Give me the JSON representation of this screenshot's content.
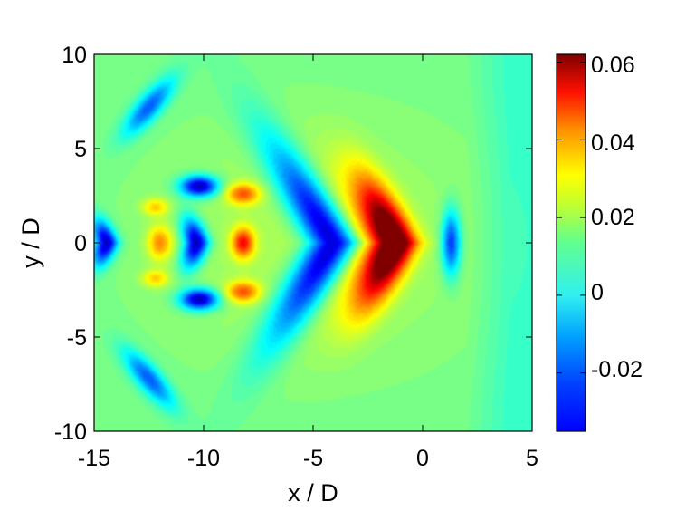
{
  "chart_data": {
    "type": "heatmap",
    "title": "",
    "xlabel": "x / D",
    "ylabel": "y / D",
    "xlim": [
      -15,
      5
    ],
    "ylim": [
      -10,
      10
    ],
    "xticks": [
      -15,
      -10,
      -5,
      0,
      5
    ],
    "xtick_labels": [
      "-15",
      "-10",
      "-5",
      "0",
      "5"
    ],
    "yticks": [
      -10,
      -5,
      0,
      5,
      10
    ],
    "ytick_labels": [
      "-10",
      "-5",
      "0",
      "5",
      "10"
    ],
    "colorbar": {
      "colormap": "jet",
      "range": [
        -0.035,
        0.062
      ],
      "ticks": [
        -0.02,
        0,
        0.02,
        0.04,
        0.06
      ],
      "tick_labels": [
        "-0.02",
        "0",
        "0.02",
        "0.04",
        "0.06"
      ]
    },
    "grid": false,
    "features": [
      {
        "x": -1.2,
        "y": 0,
        "value": 0.062,
        "description": "main positive lobe"
      },
      {
        "x": -4.0,
        "y": 0,
        "value": -0.035,
        "description": "main negative chevron"
      },
      {
        "x": 1.3,
        "y": 0,
        "value": -0.02,
        "description": "downstream negative lobe"
      },
      {
        "x": -8.2,
        "y": 0,
        "value": 0.045,
        "description": "positive center lobe"
      },
      {
        "x": -8.2,
        "y": 2.6,
        "value": 0.038,
        "description": "upper positive lobe"
      },
      {
        "x": -8.2,
        "y": -2.6,
        "value": 0.038,
        "description": "lower positive lobe"
      },
      {
        "x": -10.3,
        "y": 0,
        "value": -0.033,
        "description": "negative center lobe"
      },
      {
        "x": -10.2,
        "y": 3.0,
        "value": -0.033,
        "description": "upper negative lobe"
      },
      {
        "x": -10.2,
        "y": -3.0,
        "value": -0.033,
        "description": "lower negative lobe"
      },
      {
        "x": -14.7,
        "y": 0,
        "value": -0.03,
        "description": "far upstream negative lobe"
      },
      {
        "x": -12.5,
        "y": 7.2,
        "value": -0.015,
        "description": "upper oblique negative streak"
      },
      {
        "x": -12.5,
        "y": -7.2,
        "value": -0.015,
        "description": "lower oblique negative streak"
      }
    ]
  }
}
